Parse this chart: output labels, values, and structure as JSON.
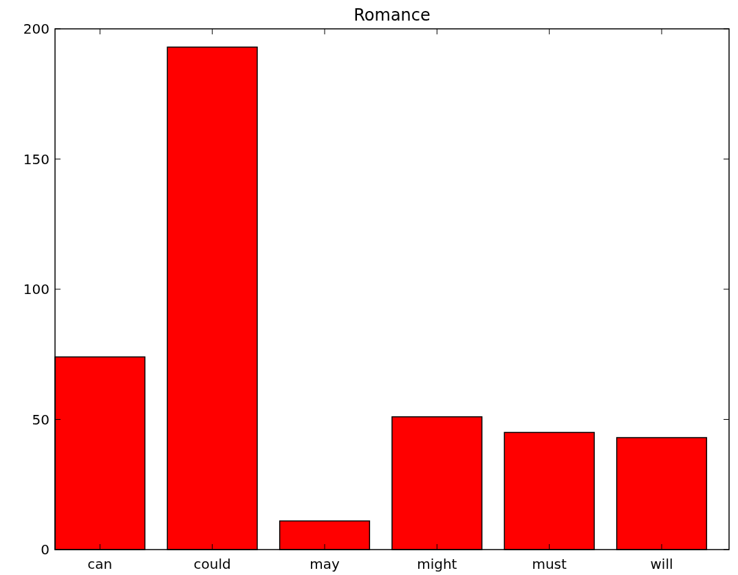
{
  "chart_data": {
    "type": "bar",
    "title": "Romance",
    "categories": [
      "can",
      "could",
      "may",
      "might",
      "must",
      "will"
    ],
    "values": [
      74,
      193,
      11,
      51,
      45,
      43
    ],
    "color": "#ff0000",
    "ylim": [
      0,
      200
    ],
    "yticks": [
      0,
      50,
      100,
      150,
      200
    ],
    "grid": false
  }
}
